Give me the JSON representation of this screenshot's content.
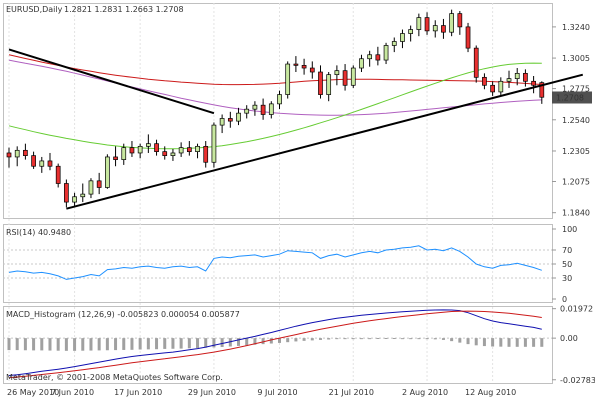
{
  "chart_data": {
    "type": "candlestick",
    "symbol_label": "EURUSD,Daily",
    "ohlc_label": "1.2821 1.2831 1.2663 1.2708",
    "price_axis": {
      "ticks": [
        "1.3240",
        "1.3005",
        "1.2775",
        "1.2540",
        "1.2305",
        "1.2075",
        "1.1840"
      ],
      "range": [
        1.18,
        1.342
      ],
      "current_price": "1.2708"
    },
    "x_axis": {
      "tick_labels": [
        "26 May 2010",
        "7 Jun 2010",
        "17 Jun 2010",
        "29 Jun 2010",
        "9 Jul 2010",
        "21 Jul 2010",
        "2 Aug 2010",
        "12 Aug 2010"
      ],
      "tick_positions": [
        0,
        8,
        16,
        25,
        33,
        42,
        51,
        59
      ]
    },
    "candles": [
      {
        "o": 1.229,
        "h": 1.233,
        "l": 1.218,
        "c": 1.226
      },
      {
        "o": 1.226,
        "h": 1.234,
        "l": 1.219,
        "c": 1.231
      },
      {
        "o": 1.231,
        "h": 1.236,
        "l": 1.224,
        "c": 1.227
      },
      {
        "o": 1.227,
        "h": 1.23,
        "l": 1.217,
        "c": 1.219
      },
      {
        "o": 1.219,
        "h": 1.226,
        "l": 1.214,
        "c": 1.223
      },
      {
        "o": 1.223,
        "h": 1.229,
        "l": 1.216,
        "c": 1.219
      },
      {
        "o": 1.219,
        "h": 1.221,
        "l": 1.203,
        "c": 1.206
      },
      {
        "o": 1.206,
        "h": 1.209,
        "l": 1.188,
        "c": 1.192
      },
      {
        "o": 1.192,
        "h": 1.199,
        "l": 1.188,
        "c": 1.196
      },
      {
        "o": 1.196,
        "h": 1.206,
        "l": 1.192,
        "c": 1.198
      },
      {
        "o": 1.198,
        "h": 1.21,
        "l": 1.195,
        "c": 1.208
      },
      {
        "o": 1.208,
        "h": 1.214,
        "l": 1.198,
        "c": 1.203
      },
      {
        "o": 1.203,
        "h": 1.228,
        "l": 1.202,
        "c": 1.226
      },
      {
        "o": 1.226,
        "h": 1.234,
        "l": 1.219,
        "c": 1.224
      },
      {
        "o": 1.224,
        "h": 1.236,
        "l": 1.22,
        "c": 1.233
      },
      {
        "o": 1.233,
        "h": 1.238,
        "l": 1.226,
        "c": 1.229
      },
      {
        "o": 1.229,
        "h": 1.236,
        "l": 1.225,
        "c": 1.234
      },
      {
        "o": 1.234,
        "h": 1.243,
        "l": 1.229,
        "c": 1.236
      },
      {
        "o": 1.236,
        "h": 1.239,
        "l": 1.227,
        "c": 1.23
      },
      {
        "o": 1.23,
        "h": 1.234,
        "l": 1.224,
        "c": 1.227
      },
      {
        "o": 1.227,
        "h": 1.232,
        "l": 1.223,
        "c": 1.229
      },
      {
        "o": 1.229,
        "h": 1.237,
        "l": 1.226,
        "c": 1.233
      },
      {
        "o": 1.233,
        "h": 1.238,
        "l": 1.227,
        "c": 1.23
      },
      {
        "o": 1.23,
        "h": 1.236,
        "l": 1.225,
        "c": 1.234
      },
      {
        "o": 1.234,
        "h": 1.238,
        "l": 1.218,
        "c": 1.222
      },
      {
        "o": 1.222,
        "h": 1.252,
        "l": 1.218,
        "c": 1.25
      },
      {
        "o": 1.25,
        "h": 1.258,
        "l": 1.244,
        "c": 1.255
      },
      {
        "o": 1.255,
        "h": 1.26,
        "l": 1.248,
        "c": 1.253
      },
      {
        "o": 1.253,
        "h": 1.263,
        "l": 1.25,
        "c": 1.259
      },
      {
        "o": 1.259,
        "h": 1.265,
        "l": 1.255,
        "c": 1.262
      },
      {
        "o": 1.262,
        "h": 1.268,
        "l": 1.257,
        "c": 1.265
      },
      {
        "o": 1.265,
        "h": 1.27,
        "l": 1.254,
        "c": 1.258
      },
      {
        "o": 1.258,
        "h": 1.268,
        "l": 1.255,
        "c": 1.266
      },
      {
        "o": 1.266,
        "h": 1.276,
        "l": 1.262,
        "c": 1.273
      },
      {
        "o": 1.273,
        "h": 1.298,
        "l": 1.27,
        "c": 1.296
      },
      {
        "o": 1.296,
        "h": 1.302,
        "l": 1.29,
        "c": 1.295
      },
      {
        "o": 1.295,
        "h": 1.3,
        "l": 1.288,
        "c": 1.293
      },
      {
        "o": 1.293,
        "h": 1.298,
        "l": 1.285,
        "c": 1.29
      },
      {
        "o": 1.29,
        "h": 1.295,
        "l": 1.27,
        "c": 1.273
      },
      {
        "o": 1.273,
        "h": 1.29,
        "l": 1.268,
        "c": 1.288
      },
      {
        "o": 1.288,
        "h": 1.295,
        "l": 1.28,
        "c": 1.291
      },
      {
        "o": 1.291,
        "h": 1.296,
        "l": 1.276,
        "c": 1.28
      },
      {
        "o": 1.28,
        "h": 1.295,
        "l": 1.278,
        "c": 1.293
      },
      {
        "o": 1.293,
        "h": 1.303,
        "l": 1.29,
        "c": 1.3
      },
      {
        "o": 1.3,
        "h": 1.306,
        "l": 1.294,
        "c": 1.303
      },
      {
        "o": 1.303,
        "h": 1.309,
        "l": 1.295,
        "c": 1.299
      },
      {
        "o": 1.299,
        "h": 1.312,
        "l": 1.296,
        "c": 1.31
      },
      {
        "o": 1.31,
        "h": 1.316,
        "l": 1.305,
        "c": 1.313
      },
      {
        "o": 1.313,
        "h": 1.322,
        "l": 1.308,
        "c": 1.319
      },
      {
        "o": 1.319,
        "h": 1.325,
        "l": 1.313,
        "c": 1.322
      },
      {
        "o": 1.322,
        "h": 1.334,
        "l": 1.317,
        "c": 1.331
      },
      {
        "o": 1.331,
        "h": 1.335,
        "l": 1.318,
        "c": 1.321
      },
      {
        "o": 1.321,
        "h": 1.329,
        "l": 1.316,
        "c": 1.325
      },
      {
        "o": 1.325,
        "h": 1.33,
        "l": 1.315,
        "c": 1.32
      },
      {
        "o": 1.32,
        "h": 1.337,
        "l": 1.317,
        "c": 1.334
      },
      {
        "o": 1.334,
        "h": 1.336,
        "l": 1.318,
        "c": 1.324
      },
      {
        "o": 1.324,
        "h": 1.327,
        "l": 1.305,
        "c": 1.308
      },
      {
        "o": 1.308,
        "h": 1.31,
        "l": 1.282,
        "c": 1.286
      },
      {
        "o": 1.286,
        "h": 1.289,
        "l": 1.277,
        "c": 1.28
      },
      {
        "o": 1.28,
        "h": 1.283,
        "l": 1.272,
        "c": 1.275
      },
      {
        "o": 1.275,
        "h": 1.286,
        "l": 1.272,
        "c": 1.283
      },
      {
        "o": 1.283,
        "h": 1.291,
        "l": 1.278,
        "c": 1.285
      },
      {
        "o": 1.285,
        "h": 1.293,
        "l": 1.28,
        "c": 1.289
      },
      {
        "o": 1.289,
        "h": 1.292,
        "l": 1.279,
        "c": 1.283
      },
      {
        "o": 1.283,
        "h": 1.287,
        "l": 1.274,
        "c": 1.28
      },
      {
        "o": 1.282,
        "h": 1.283,
        "l": 1.266,
        "c": 1.271
      }
    ],
    "ma_red": [
      1.303,
      1.3016,
      1.3002,
      1.2988,
      1.2975,
      1.2962,
      1.295,
      1.2938,
      1.2926,
      1.2915,
      1.2905,
      1.2895,
      1.2885,
      1.2876,
      1.2868,
      1.286,
      1.2853,
      1.2846,
      1.284,
      1.2834,
      1.2829,
      1.2824,
      1.282,
      1.2816,
      1.2812,
      1.2808,
      1.2806,
      1.2805,
      1.2805,
      1.2806,
      1.2807,
      1.2809,
      1.2812,
      1.2815,
      1.282,
      1.2825,
      1.283,
      1.2834,
      1.2837,
      1.284,
      1.2843,
      1.2845,
      1.2846,
      1.2846,
      1.2845,
      1.2844,
      1.2843,
      1.2842,
      1.2841,
      1.284,
      1.2839,
      1.2838,
      1.2837,
      1.2836,
      1.2835,
      1.2834,
      1.2833,
      1.2832,
      1.283,
      1.2828,
      1.2825,
      1.2822,
      1.2818,
      1.2814,
      1.281,
      1.2806
    ],
    "ma_violet": [
      1.299,
      1.2978,
      1.2966,
      1.2955,
      1.2943,
      1.2931,
      1.2918,
      1.2905,
      1.2891,
      1.2877,
      1.2862,
      1.2847,
      1.2832,
      1.2817,
      1.2802,
      1.2787,
      1.2773,
      1.2759,
      1.2745,
      1.2731,
      1.2717,
      1.2703,
      1.269,
      1.2677,
      1.2664,
      1.2652,
      1.2641,
      1.2631,
      1.2622,
      1.2614,
      1.2606,
      1.26,
      1.2594,
      1.2589,
      1.2585,
      1.2582,
      1.2579,
      1.2577,
      1.2575,
      1.2574,
      1.2574,
      1.2575,
      1.2577,
      1.2579,
      1.2582,
      1.2586,
      1.259,
      1.2595,
      1.26,
      1.2606,
      1.2612,
      1.2618,
      1.2624,
      1.263,
      1.2636,
      1.2642,
      1.2648,
      1.2654,
      1.266,
      1.2665,
      1.267,
      1.2675,
      1.2679,
      1.2683,
      1.2687,
      1.269
    ],
    "ma_green": [
      1.2495,
      1.248,
      1.2465,
      1.245,
      1.2437,
      1.2424,
      1.2412,
      1.24,
      1.2389,
      1.2378,
      1.2368,
      1.2359,
      1.235,
      1.2343,
      1.2337,
      1.2332,
      1.2328,
      1.2325,
      1.2323,
      1.2322,
      1.2322,
      1.2323,
      1.2325,
      1.2328,
      1.2332,
      1.2338,
      1.2345,
      1.2354,
      1.2364,
      1.2375,
      1.2387,
      1.24,
      1.2414,
      1.2429,
      1.2445,
      1.2462,
      1.248,
      1.2498,
      1.2517,
      1.2536,
      1.2556,
      1.2576,
      1.2597,
      1.2618,
      1.264,
      1.2662,
      1.2684,
      1.2706,
      1.2728,
      1.275,
      1.2772,
      1.2794,
      1.2815,
      1.2836,
      1.2856,
      1.2875,
      1.2893,
      1.291,
      1.2925,
      1.2938,
      1.2949,
      1.2957,
      1.2963,
      1.2966,
      1.2967,
      1.2966
    ],
    "trendlines": [
      {
        "x1": 0,
        "y1": 1.307,
        "x2": 25,
        "y2": 1.259
      },
      {
        "x1": 7,
        "y1": 1.187,
        "x2": 70,
        "y2": 1.288
      }
    ],
    "rsi": {
      "label": "RSI(14) 40.9480",
      "ticks": [
        "100",
        "70",
        "50",
        "30",
        "0"
      ],
      "levels": [
        70,
        50,
        30
      ],
      "range": [
        0,
        100
      ],
      "values": [
        38,
        40,
        39,
        37,
        38,
        36,
        33,
        28,
        30,
        32,
        35,
        33,
        42,
        43,
        45,
        44,
        46,
        47,
        45,
        44,
        46,
        47,
        45,
        46,
        40,
        58,
        60,
        59,
        61,
        62,
        63,
        60,
        62,
        64,
        69,
        68,
        67,
        66,
        58,
        62,
        64,
        60,
        63,
        66,
        68,
        66,
        70,
        71,
        73,
        74,
        76,
        70,
        71,
        69,
        73,
        68,
        60,
        50,
        46,
        44,
        48,
        49,
        51,
        48,
        45,
        41
      ]
    },
    "macd": {
      "label": "MACD_Histogram (12,26,9) -0.005823 0.000054 0.005877",
      "ticks": [
        "0.01972",
        "0.00",
        "-0.02783"
      ],
      "range": [
        -0.03,
        0.0215
      ],
      "histogram": [
        -0.008,
        -0.008,
        -0.0081,
        -0.0082,
        -0.0082,
        -0.0083,
        -0.0084,
        -0.0085,
        -0.0085,
        -0.0084,
        -0.0083,
        -0.0082,
        -0.0081,
        -0.008,
        -0.0079,
        -0.0078,
        -0.0076,
        -0.0075,
        -0.0074,
        -0.0072,
        -0.0071,
        -0.007,
        -0.0068,
        -0.0066,
        -0.0064,
        -0.0062,
        -0.0059,
        -0.0056,
        -0.0052,
        -0.0048,
        -0.0044,
        -0.004,
        -0.0036,
        -0.0032,
        -0.0027,
        -0.0022,
        -0.0018,
        -0.0015,
        -0.0012,
        -0.0009,
        -0.0006,
        -0.0004,
        -0.0002,
        -0.0001,
        0.0,
        0.0001,
        0.0001,
        0.0001,
        0.0,
        -0.0001,
        -0.0002,
        -0.0004,
        -0.0008,
        -0.0012,
        -0.002,
        -0.003,
        -0.004,
        -0.0048,
        -0.0053,
        -0.0056,
        -0.0057,
        -0.0058,
        -0.0058,
        -0.0058,
        -0.0058,
        -0.0058
      ],
      "macd_line": [
        -0.025,
        -0.0245,
        -0.0238,
        -0.023,
        -0.0222,
        -0.0215,
        -0.0208,
        -0.02,
        -0.019,
        -0.018,
        -0.017,
        -0.016,
        -0.015,
        -0.014,
        -0.0131,
        -0.0123,
        -0.0116,
        -0.011,
        -0.0105,
        -0.0099,
        -0.0093,
        -0.0086,
        -0.0078,
        -0.007,
        -0.006,
        -0.0048,
        -0.0036,
        -0.0024,
        -0.0012,
        0.0,
        0.0012,
        0.0025,
        0.0038,
        0.0052,
        0.0066,
        0.008,
        0.0092,
        0.0104,
        0.0114,
        0.0124,
        0.0133,
        0.014,
        0.0147,
        0.0153,
        0.0158,
        0.0163,
        0.0168,
        0.0172,
        0.0176,
        0.018,
        0.0183,
        0.0186,
        0.0188,
        0.0189,
        0.0188,
        0.0184,
        0.017,
        0.015,
        0.013,
        0.0115,
        0.0104,
        0.0096,
        0.0088,
        0.008,
        0.0072,
        0.006
      ],
      "signal_line": [
        -0.0265,
        -0.026,
        -0.0255,
        -0.0249,
        -0.0243,
        -0.0237,
        -0.0231,
        -0.0225,
        -0.0218,
        -0.0211,
        -0.0204,
        -0.0197,
        -0.0189,
        -0.0181,
        -0.0173,
        -0.0165,
        -0.0158,
        -0.0151,
        -0.0144,
        -0.0138,
        -0.0131,
        -0.0124,
        -0.0117,
        -0.011,
        -0.0102,
        -0.0093,
        -0.0083,
        -0.0073,
        -0.0062,
        -0.005,
        -0.0038,
        -0.0025,
        -0.0012,
        0.0,
        0.0012,
        0.0024,
        0.0036,
        0.0048,
        0.0059,
        0.007,
        0.008,
        0.009,
        0.0099,
        0.0108,
        0.0116,
        0.0124,
        0.0131,
        0.0138,
        0.0145,
        0.0151,
        0.0157,
        0.0163,
        0.0168,
        0.0173,
        0.0178,
        0.018,
        0.0181,
        0.018,
        0.0178,
        0.0175,
        0.0171,
        0.0166,
        0.016,
        0.0153,
        0.0146,
        0.0138
      ]
    },
    "copyright": "MetaTrader, © 2001-2008 MetaQuotes Software Corp.",
    "colors": {
      "bull": "#c8e8a0",
      "bear": "#e83030",
      "candle_outline": "#000000",
      "ma_red": "#cc1a1a",
      "ma_violet": "#b060c0",
      "ma_green": "#66cc33",
      "trendline": "#000000",
      "rsi": "#1e90ff",
      "macd": "#1010b0",
      "signal": "#cc1a1a",
      "histogram": "#a0a0a0",
      "price_box": "#505050"
    }
  }
}
